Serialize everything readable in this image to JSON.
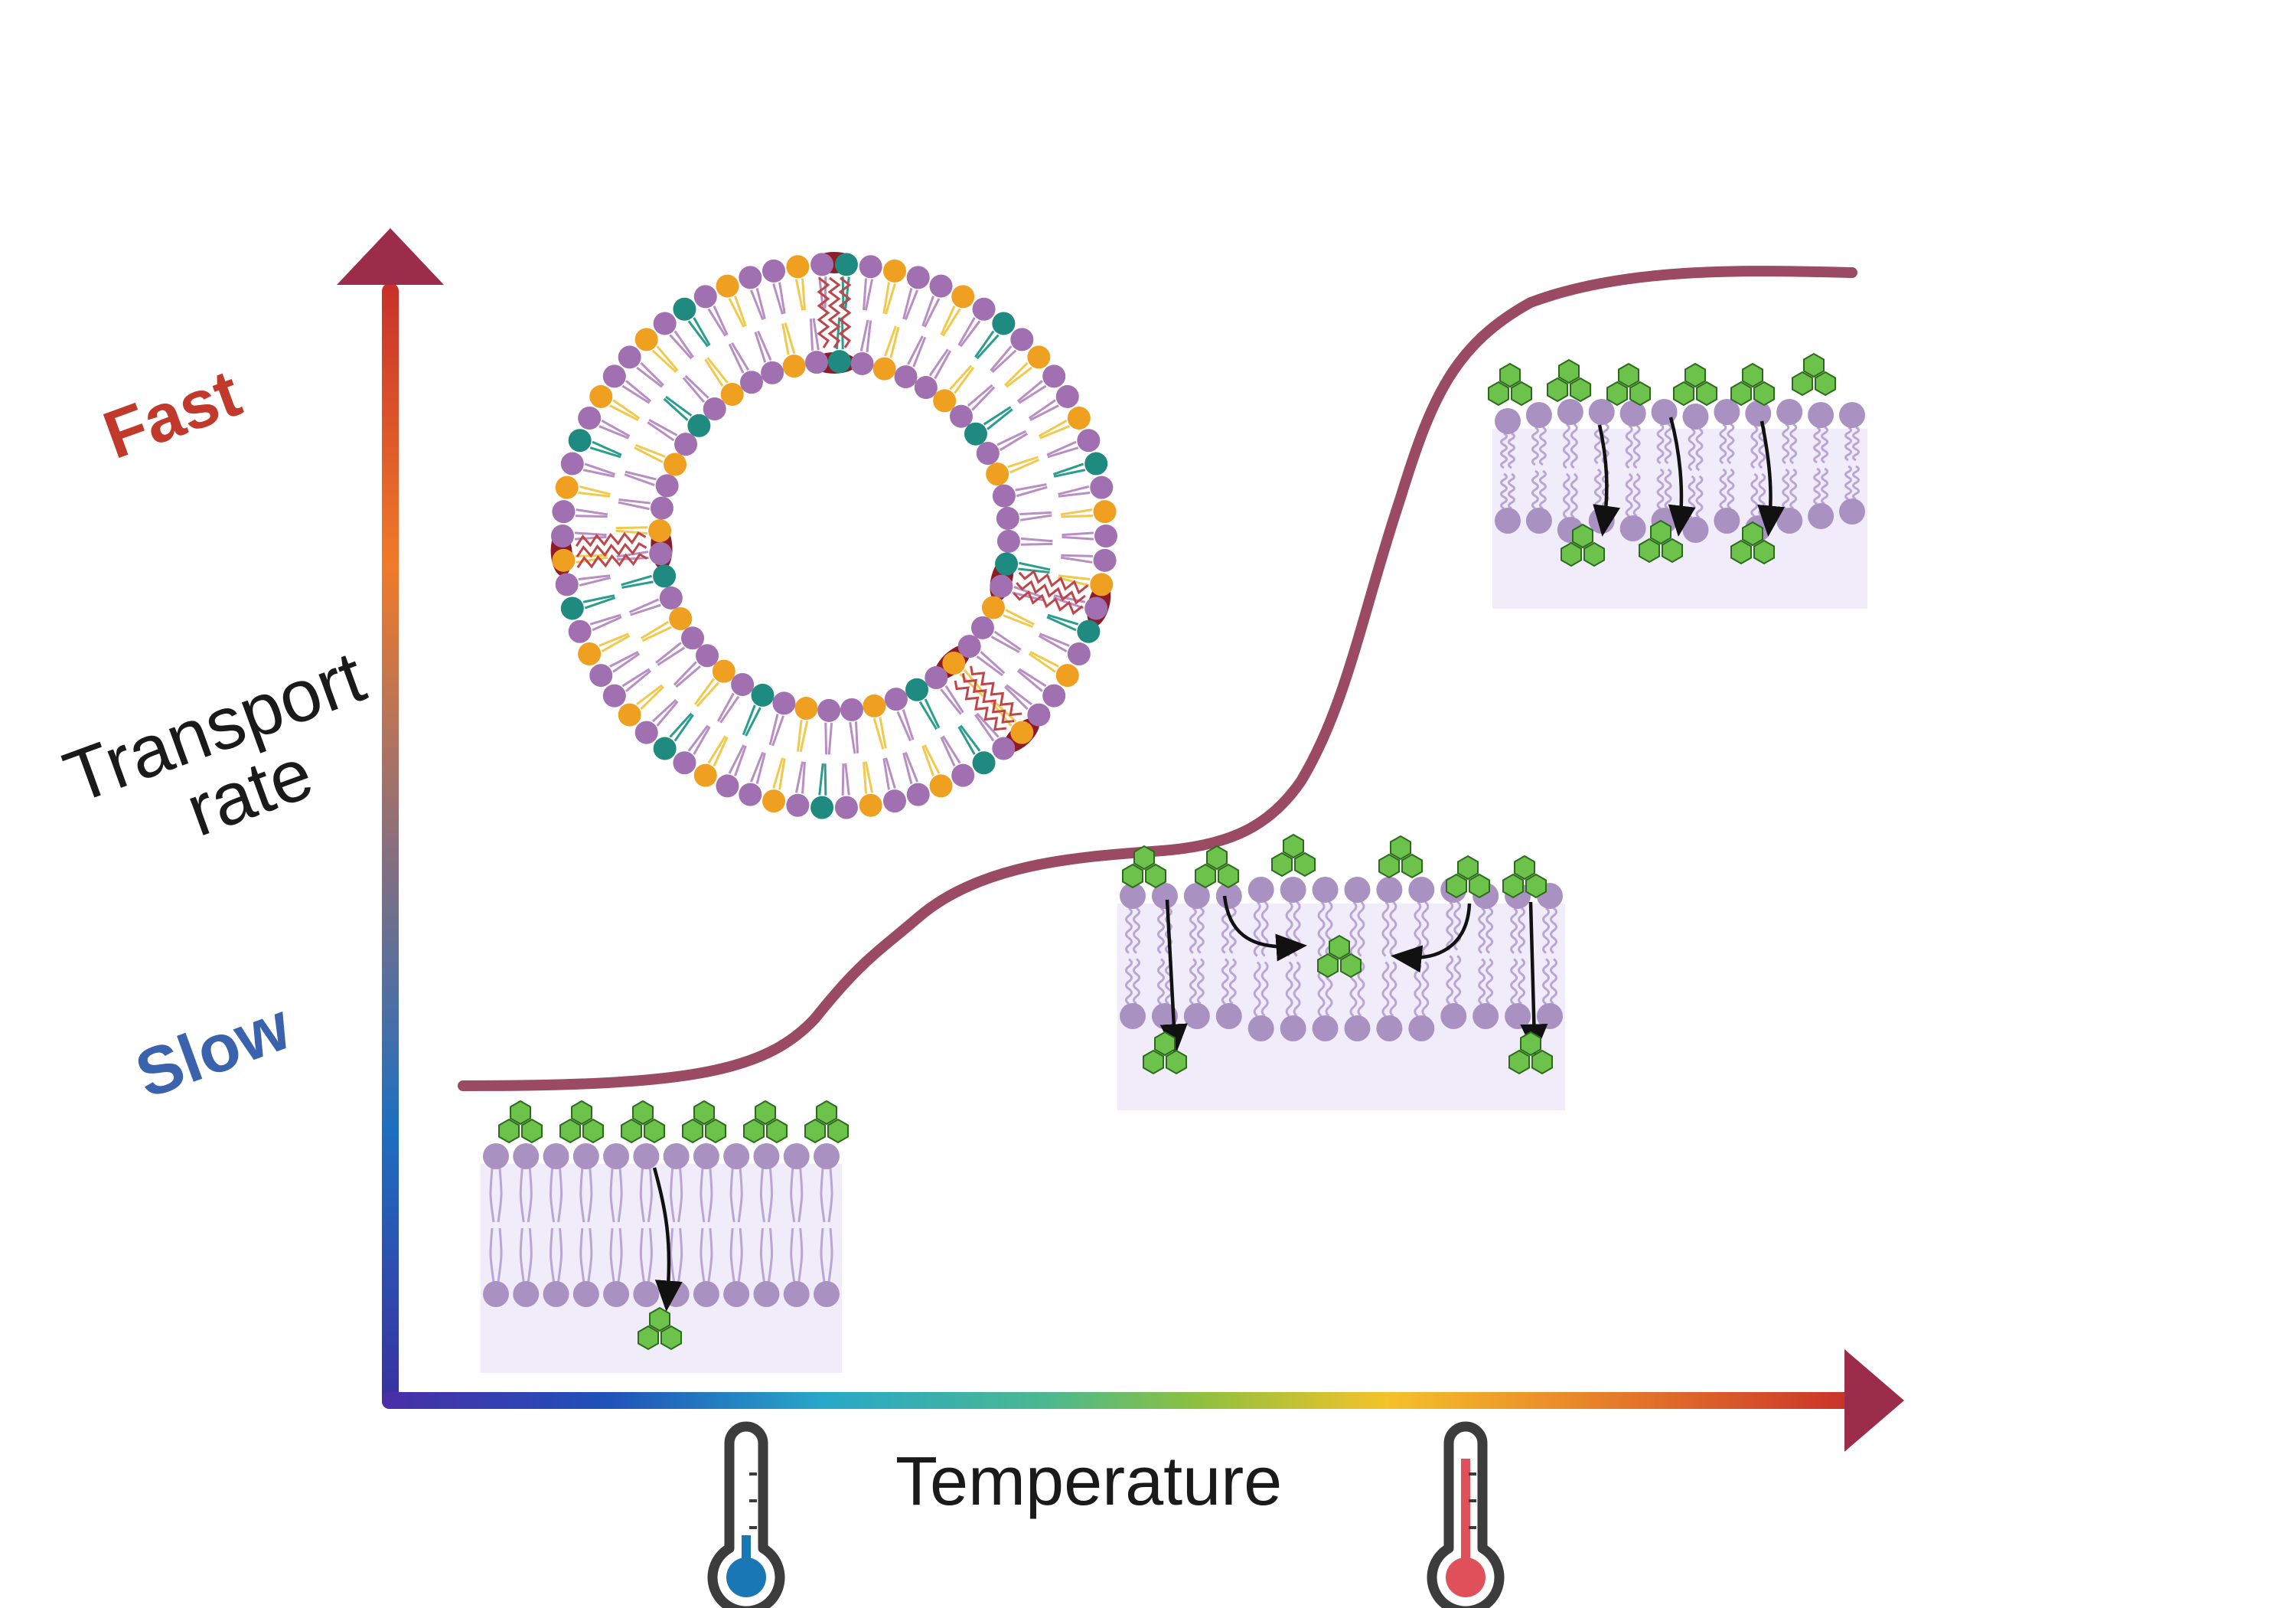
{
  "axes": {
    "y_label_line1": "Transport",
    "y_label_line2": "rate",
    "x_label": "Temperature",
    "y_high_label": "Fast",
    "y_low_label": "Slow"
  },
  "colors": {
    "fast": "#c0392b",
    "slow": "#3a62ad",
    "curve": "#9b4a63",
    "arrowhead": "#9b2d4b",
    "head_purple": "#a992c2",
    "tail_purple": "#b9a6d4",
    "layer_fill": "#f0ecfa",
    "molecule_green": "#6cc24a",
    "molecule_stroke": "#2e6b1f",
    "vesicle_purple": "#a070b0",
    "vesicle_yellow": "#f0a020",
    "vesicle_teal": "#1e8a80",
    "vesicle_protein": "#8e1b26",
    "cold_bulb": "#1a77b6",
    "hot_bulb": "#e0505a"
  },
  "icons": [
    "thermometer-cold-icon",
    "thermometer-hot-icon",
    "liposome-icon",
    "membrane-bilayer-icon",
    "molecule-icon"
  ]
}
